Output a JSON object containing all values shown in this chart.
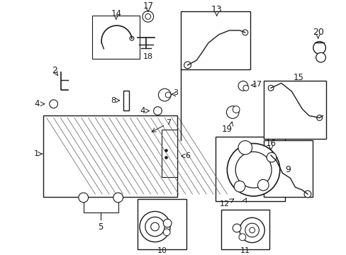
{
  "background_color": "#ffffff",
  "figsize": [
    4.89,
    3.6
  ],
  "dpi": 100,
  "dark": "#1a1a1a",
  "gray": "#666666",
  "fs": 7.5
}
